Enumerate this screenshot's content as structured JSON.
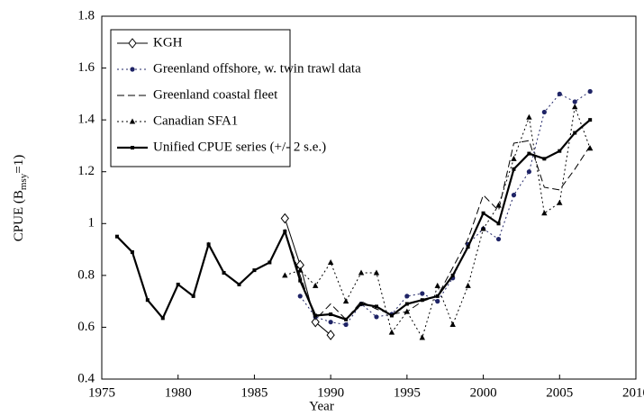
{
  "chart_data": {
    "type": "line",
    "xlabel": "Year",
    "ylabel": [
      "CPUE (B",
      "msy",
      "=1)"
    ],
    "xlim": [
      1975,
      2010
    ],
    "xticks": [
      1975,
      1980,
      1985,
      1990,
      1995,
      2000,
      2005,
      2010
    ],
    "ylim": [
      0.4,
      1.8
    ],
    "yticks": [
      0.4,
      0.6,
      0.8,
      1,
      1.2,
      1.4,
      1.6,
      1.8
    ],
    "legend": "top-left",
    "series": [
      {
        "name": "KGH",
        "color": "#000000",
        "style": "solid",
        "width": 1,
        "marker": "diamond",
        "x": [
          1987,
          1988,
          1989,
          1990
        ],
        "values": [
          1.02,
          0.84,
          0.62,
          0.57
        ]
      },
      {
        "name": "Greenland offshore, w. twin trawl data",
        "color": "#1f2466",
        "style": "dotted",
        "width": 1,
        "marker": "circle",
        "x": [
          1988,
          1989,
          1990,
          1991,
          1992,
          1993,
          1994,
          1995,
          1996,
          1997,
          1998,
          1999,
          2000,
          2001,
          2002,
          2003,
          2004,
          2005,
          2006,
          2007
        ],
        "values": [
          0.72,
          0.64,
          0.62,
          0.61,
          0.69,
          0.64,
          0.65,
          0.72,
          0.73,
          0.7,
          0.79,
          0.92,
          0.98,
          0.94,
          1.11,
          1.2,
          1.43,
          1.5,
          1.47,
          1.51
        ]
      },
      {
        "name": "Greenland coastal fleet",
        "color": "#000000",
        "style": "dashed",
        "width": 1,
        "marker": "none",
        "x": [
          1987,
          1988,
          1989,
          1990,
          1991,
          1992,
          1993,
          1994,
          1995,
          1996,
          1997,
          1998,
          1999,
          2000,
          2001,
          2002,
          2003,
          2004,
          2005,
          2006,
          2007
        ],
        "values": [
          0.97,
          0.8,
          0.63,
          0.69,
          0.63,
          0.7,
          0.67,
          0.65,
          0.66,
          0.7,
          0.72,
          0.83,
          0.94,
          1.11,
          1.05,
          1.31,
          1.32,
          1.14,
          1.13,
          1.21,
          1.3
        ]
      },
      {
        "name": "Canadian SFA1",
        "color": "#000000",
        "style": "dotted",
        "width": 1,
        "marker": "triangle",
        "x": [
          1987,
          1988,
          1989,
          1990,
          1991,
          1992,
          1993,
          1994,
          1995,
          1996,
          1997,
          1998,
          1999,
          2000,
          2001,
          2002,
          2003,
          2004,
          2005,
          2006,
          2007
        ],
        "values": [
          0.8,
          0.82,
          0.76,
          0.85,
          0.7,
          0.81,
          0.81,
          0.58,
          0.66,
          0.56,
          0.76,
          0.61,
          0.76,
          0.98,
          1.07,
          1.25,
          1.41,
          1.04,
          1.08,
          1.45,
          1.29
        ]
      },
      {
        "name": "Unified CPUE series (+/- 2 s.e.)",
        "color": "#000000",
        "style": "solid",
        "width": 2.2,
        "marker": "square",
        "x": [
          1976,
          1977,
          1978,
          1979,
          1980,
          1981,
          1982,
          1983,
          1984,
          1985,
          1986,
          1987,
          1988,
          1989,
          1990,
          1991,
          1992,
          1993,
          1994,
          1995,
          1996,
          1997,
          1998,
          1999,
          2000,
          2001,
          2002,
          2003,
          2004,
          2005,
          2006,
          2007
        ],
        "values": [
          0.95,
          0.89,
          0.705,
          0.635,
          0.765,
          0.72,
          0.92,
          0.81,
          0.765,
          0.82,
          0.85,
          0.97,
          0.78,
          0.645,
          0.65,
          0.63,
          0.69,
          0.68,
          0.645,
          0.69,
          0.705,
          0.72,
          0.8,
          0.91,
          1.04,
          1.0,
          1.21,
          1.27,
          1.25,
          1.28,
          1.35,
          1.4
        ]
      }
    ]
  }
}
